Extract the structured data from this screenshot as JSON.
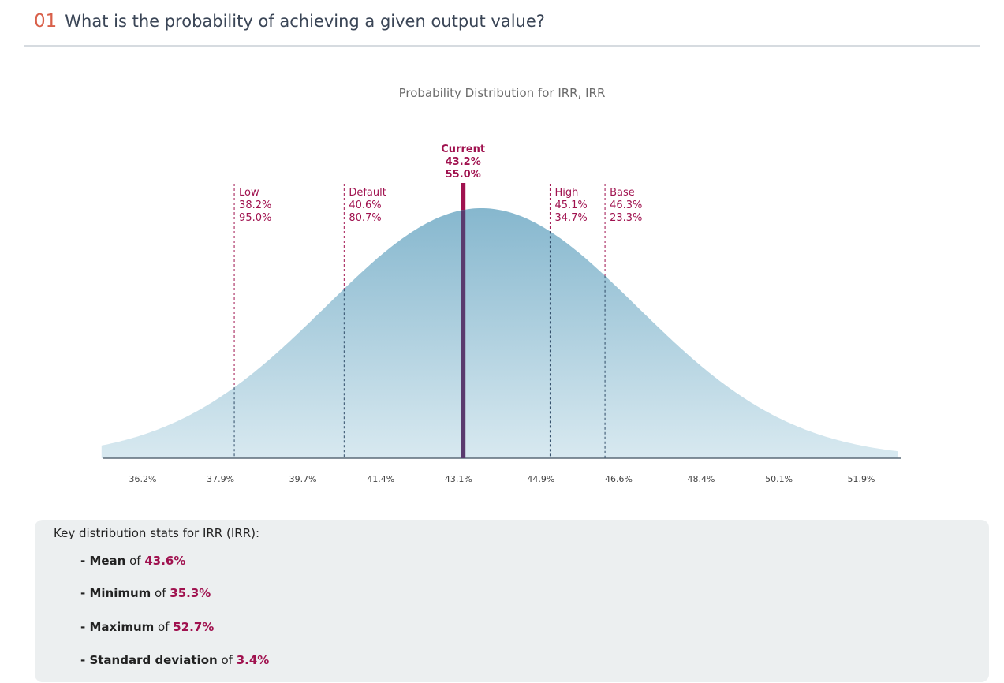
{
  "header": {
    "number": "01",
    "title": "What is the probability of achieving a given output value?"
  },
  "chart_data": {
    "type": "area",
    "title": "Probability Distribution for IRR, IRR",
    "x_ticks": [
      "36.2%",
      "37.9%",
      "39.7%",
      "41.4%",
      "43.1%",
      "44.9%",
      "46.6%",
      "48.4%",
      "50.1%",
      "51.9%"
    ],
    "x_tick_values": [
      36.2,
      37.9,
      39.7,
      41.4,
      43.1,
      44.9,
      46.6,
      48.4,
      50.1,
      51.9
    ],
    "distribution": {
      "mean": 43.6,
      "sd": 3.4,
      "min": 35.3,
      "max": 52.7
    },
    "markers": [
      {
        "name": "Low",
        "value_label": "38.2%",
        "prob_label": "95.0%",
        "value": 38.2
      },
      {
        "name": "Default",
        "value_label": "40.6%",
        "prob_label": "80.7%",
        "value": 40.6
      },
      {
        "name": "High",
        "value_label": "45.1%",
        "prob_label": "34.7%",
        "value": 45.1
      },
      {
        "name": "Base",
        "value_label": "46.3%",
        "prob_label": "23.3%",
        "value": 46.3
      }
    ],
    "current": {
      "name": "Current",
      "value_label": "43.2%",
      "prob_label": "55.0%",
      "value": 43.2
    },
    "colors": {
      "fill_top": "#86b7ce",
      "fill_bottom": "#d8e9f0",
      "marker": "#a0124f"
    }
  },
  "stats": {
    "title": "Key distribution stats for IRR (IRR):",
    "items": [
      {
        "label": "- Mean",
        "of": " of ",
        "value": "43.6%"
      },
      {
        "label": "- Minimum",
        "of": " of ",
        "value": "35.3%"
      },
      {
        "label": "- Maximum",
        "of": " of ",
        "value": "52.7%"
      },
      {
        "label": "- Standard deviation",
        "of": " of ",
        "value": "3.4%"
      }
    ]
  }
}
